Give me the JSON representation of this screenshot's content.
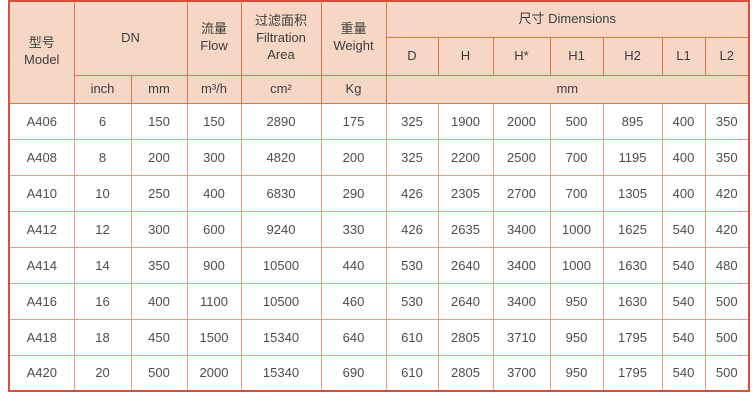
{
  "table": {
    "title": "尺寸 Dimensions spec table",
    "header": {
      "model": "型号\nModel",
      "dn": "DN",
      "flow": "流量\nFlow",
      "filtration_area": "过滤面积\nFiltration\nArea",
      "weight": "重量\nWeight",
      "dimensions": "尺寸 Dimensions",
      "dim_cols": [
        "D",
        "H",
        "H*",
        "H1",
        "H2",
        "L1",
        "L2"
      ],
      "units": [
        "inch",
        "mm",
        "m³/h",
        "cm²",
        "Kg",
        "mm"
      ]
    },
    "columns": [
      "Model",
      "DN inch",
      "DN mm",
      "Flow m³/h",
      "Filtration Area cm²",
      "Weight Kg",
      "D mm",
      "H mm",
      "H* mm",
      "H1 mm",
      "H2 mm",
      "L1 mm",
      "L2 mm"
    ],
    "rows": [
      [
        "A406",
        "6",
        "150",
        "150",
        "2890",
        "175",
        "325",
        "1900",
        "2000",
        "500",
        "895",
        "400",
        "350"
      ],
      [
        "A408",
        "8",
        "200",
        "300",
        "4820",
        "200",
        "325",
        "2200",
        "2500",
        "700",
        "1195",
        "400",
        "350"
      ],
      [
        "A410",
        "10",
        "250",
        "400",
        "6830",
        "290",
        "426",
        "2305",
        "2700",
        "700",
        "1305",
        "400",
        "420"
      ],
      [
        "A412",
        "12",
        "300",
        "600",
        "9240",
        "330",
        "426",
        "2635",
        "3400",
        "1000",
        "1625",
        "540",
        "420"
      ],
      [
        "A414",
        "14",
        "350",
        "900",
        "10500",
        "440",
        "530",
        "2640",
        "3400",
        "1000",
        "1630",
        "540",
        "480"
      ],
      [
        "A416",
        "16",
        "400",
        "1100",
        "10500",
        "460",
        "530",
        "2640",
        "3400",
        "950",
        "1630",
        "540",
        "500"
      ],
      [
        "A418",
        "18",
        "450",
        "1500",
        "15340",
        "640",
        "610",
        "2805",
        "3710",
        "950",
        "1795",
        "540",
        "500"
      ],
      [
        "A420",
        "20",
        "500",
        "2000",
        "15340",
        "690",
        "610",
        "2805",
        "3700",
        "950",
        "1795",
        "540",
        "500"
      ]
    ],
    "colors": {
      "header_bg": "#f6d7c5",
      "header_border": "#e2714d",
      "grid_border": "#f09a8c",
      "outer_border": "#d94f3a",
      "header_text": "#3d3d3d",
      "cell_text": "#4d4d4d"
    }
  }
}
